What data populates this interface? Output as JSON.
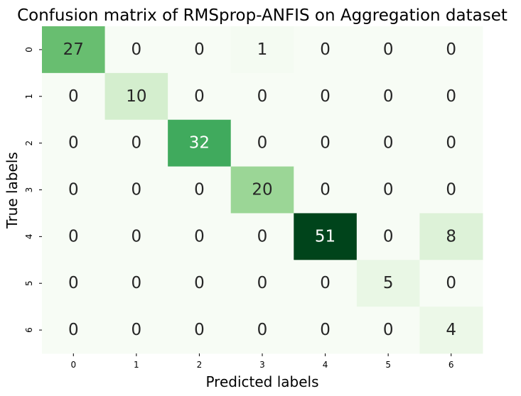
{
  "chart_data": {
    "type": "heatmap",
    "title": "Confusion matrix of RMSprop-ANFIS on Aggregation dataset",
    "xlabel": "Predicted labels",
    "ylabel": "True labels",
    "x_ticks": [
      "0",
      "1",
      "2",
      "3",
      "4",
      "5",
      "6"
    ],
    "y_ticks": [
      "0",
      "1",
      "2",
      "3",
      "4",
      "5",
      "6"
    ],
    "matrix": [
      [
        27,
        0,
        0,
        1,
        0,
        0,
        0
      ],
      [
        0,
        10,
        0,
        0,
        0,
        0,
        0
      ],
      [
        0,
        0,
        32,
        0,
        0,
        0,
        0
      ],
      [
        0,
        0,
        0,
        20,
        0,
        0,
        0
      ],
      [
        0,
        0,
        0,
        0,
        51,
        0,
        8
      ],
      [
        0,
        0,
        0,
        0,
        0,
        5,
        0
      ],
      [
        0,
        0,
        0,
        0,
        0,
        0,
        4
      ]
    ],
    "colormap": "Greens",
    "value_range": [
      0,
      51
    ],
    "colorbar": false,
    "grid": false
  }
}
